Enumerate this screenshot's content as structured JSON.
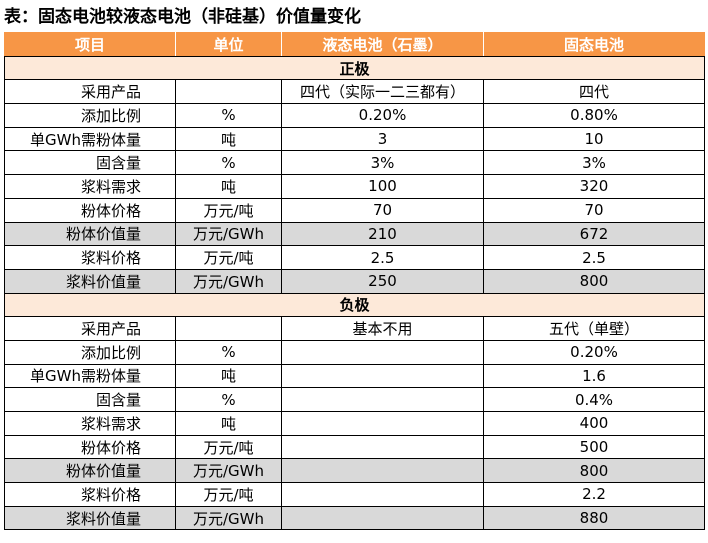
{
  "title": "表：固态电池较液态电池（非硅基）价值量变化",
  "header": [
    "项目",
    "单位",
    "液态电池（石墨）",
    "固态电池"
  ],
  "positive": {
    "section_label": "正极",
    "rows": [
      {
        "item": "采用产品",
        "unit": "",
        "liquid": "四代（实际一二三都有）",
        "solid": "四代",
        "shaded": false
      },
      {
        "item": "添加比例",
        "unit": "%",
        "liquid": "0.20%",
        "solid": "0.80%",
        "shaded": false
      },
      {
        "item": "单GWh需粉体量",
        "unit": "吨",
        "liquid": "3",
        "solid": "10",
        "shaded": false
      },
      {
        "item": "固含量",
        "unit": "%",
        "liquid": "3%",
        "solid": "3%",
        "shaded": false
      },
      {
        "item": "浆料需求",
        "unit": "吨",
        "liquid": "100",
        "solid": "320",
        "shaded": false
      },
      {
        "item": "粉体价格",
        "unit": "万元/吨",
        "liquid": "70",
        "solid": "70",
        "shaded": false
      },
      {
        "item": "粉体价值量",
        "unit": "万元/GWh",
        "liquid": "210",
        "solid": "672",
        "shaded": true
      },
      {
        "item": "浆料价格",
        "unit": "万元/吨",
        "liquid": "2.5",
        "solid": "2.5",
        "shaded": false
      },
      {
        "item": "浆料价值量",
        "unit": "万元/GWh",
        "liquid": "250",
        "solid": "800",
        "shaded": true
      }
    ]
  },
  "negative": {
    "section_label": "负极",
    "rows": [
      {
        "item": "采用产品",
        "unit": "",
        "liquid": "基本不用",
        "solid": "五代（单壁）",
        "shaded": false
      },
      {
        "item": "添加比例",
        "unit": "%",
        "liquid": "",
        "solid": "0.20%",
        "shaded": false
      },
      {
        "item": "单GWh需粉体量",
        "unit": "吨",
        "liquid": "",
        "solid": "1.6",
        "shaded": false
      },
      {
        "item": "固含量",
        "unit": "%",
        "liquid": "",
        "solid": "0.4%",
        "shaded": false
      },
      {
        "item": "浆料需求",
        "unit": "吨",
        "liquid": "",
        "solid": "400",
        "shaded": false
      },
      {
        "item": "粉体价格",
        "unit": "万元/吨",
        "liquid": "",
        "solid": "500",
        "shaded": false
      },
      {
        "item": "粉体价值量",
        "unit": "万元/GWh",
        "liquid": "",
        "solid": "800",
        "shaded": true
      },
      {
        "item": "浆料价格",
        "unit": "万元/吨",
        "liquid": "",
        "solid": "2.2",
        "shaded": false
      },
      {
        "item": "浆料价值量",
        "unit": "万元/GWh",
        "liquid": "",
        "solid": "880",
        "shaded": true
      }
    ]
  }
}
